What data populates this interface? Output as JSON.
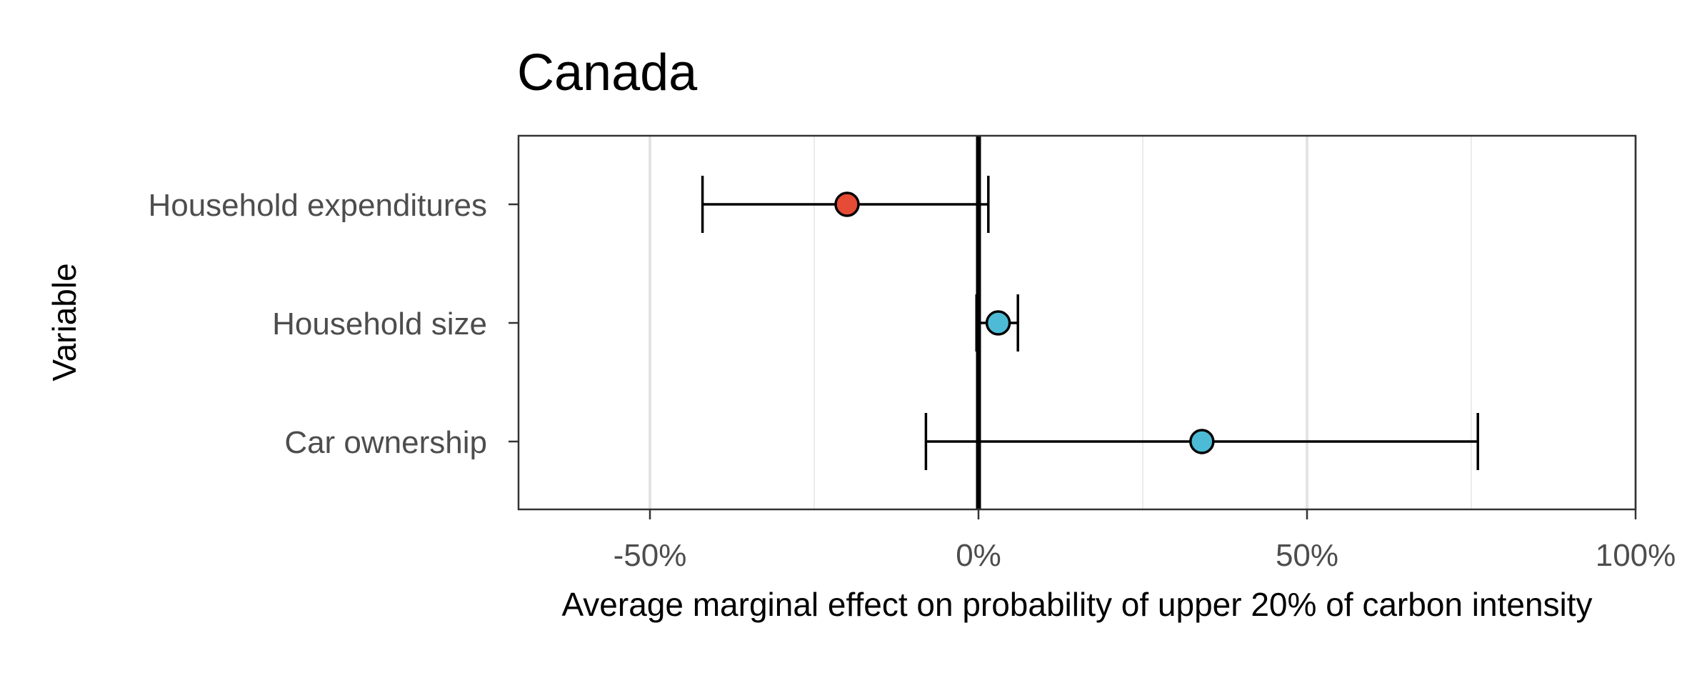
{
  "chart_data": {
    "type": "scatter",
    "title": "Canada",
    "xlabel": "Average marginal effect on probability of upper 20% of carbon intensity",
    "ylabel": "Variable",
    "xlim": [
      -70,
      100
    ],
    "x_ticks": [
      -50,
      0,
      50,
      100
    ],
    "x_tick_labels": [
      "-50%",
      "0%",
      "50%",
      "100%"
    ],
    "x_minor_gridlines": [
      -25,
      25,
      75
    ],
    "reference_line": 0,
    "grid": "vertical",
    "legend": "none",
    "categories": [
      "Household expenditures",
      "Household size",
      "Car ownership"
    ],
    "points": [
      {
        "label": "Household expenditures",
        "estimate": -20,
        "ci_low": -42,
        "ci_high": 1.5,
        "color": "#E64B35"
      },
      {
        "label": "Household size",
        "estimate": 3,
        "ci_low": -0.3,
        "ci_high": 6,
        "color": "#4DBBD5"
      },
      {
        "label": "Car ownership",
        "estimate": 34,
        "ci_low": -8,
        "ci_high": 76,
        "color": "#4DBBD5"
      }
    ]
  }
}
